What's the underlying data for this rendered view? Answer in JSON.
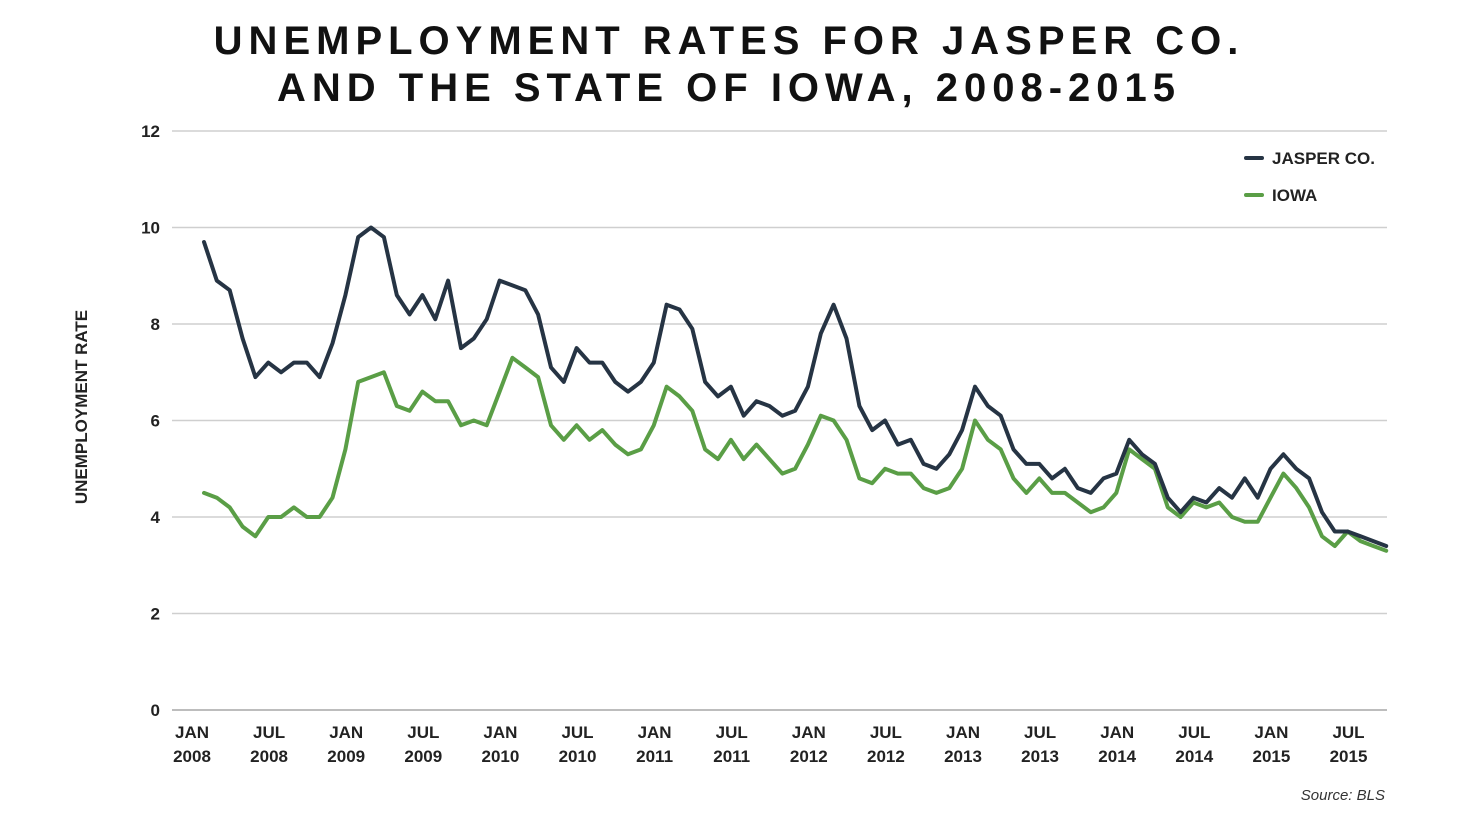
{
  "title_line1": "UNEMPLOYMENT RATES FOR JASPER CO.",
  "title_line2": "AND THE STATE OF IOWA, 2008-2015",
  "source": "Source: BLS",
  "colors": {
    "jasper": "#263444",
    "iowa": "#5a9e46",
    "grid": "#cfcfcf"
  },
  "chart_data": {
    "type": "line",
    "title": "UNEMPLOYMENT RATES FOR JASPER CO. AND THE STATE OF IOWA, 2008-2015",
    "xlabel": "",
    "ylabel": "UNEMPLOYMENT RATE",
    "ylim": [
      0,
      12
    ],
    "yticks": [
      0,
      2,
      4,
      6,
      8,
      10,
      12
    ],
    "grid": true,
    "legend_position": "top-right",
    "xticks": [
      [
        "JAN",
        "2008"
      ],
      [
        "JUL",
        "2008"
      ],
      [
        "JAN",
        "2009"
      ],
      [
        "JUL",
        "2009"
      ],
      [
        "JAN",
        "2010"
      ],
      [
        "JUL",
        "2010"
      ],
      [
        "JAN",
        "2011"
      ],
      [
        "JUL",
        "2011"
      ],
      [
        "JAN",
        "2012"
      ],
      [
        "JUL",
        "2012"
      ],
      [
        "JAN",
        "2013"
      ],
      [
        "JUL",
        "2013"
      ],
      [
        "JAN",
        "2014"
      ],
      [
        "JUL",
        "2014"
      ],
      [
        "JAN",
        "2015"
      ],
      [
        "JUL",
        "2015"
      ]
    ],
    "series": [
      {
        "name": "JASPER CO.",
        "start": "2008-01",
        "values": [
          9.7,
          8.9,
          8.7,
          7.7,
          6.9,
          7.2,
          7.0,
          7.2,
          7.2,
          6.9,
          7.6,
          8.6,
          9.8,
          10.0,
          9.8,
          8.6,
          8.2,
          8.6,
          8.1,
          8.9,
          7.5,
          7.7,
          8.1,
          8.9,
          8.8,
          8.7,
          8.2,
          7.1,
          6.8,
          7.5,
          7.2,
          7.2,
          6.8,
          6.6,
          6.8,
          7.2,
          8.4,
          8.3,
          7.9,
          6.8,
          6.5,
          6.7,
          6.1,
          6.4,
          6.3,
          6.1,
          6.2,
          6.7,
          7.8,
          8.4,
          7.7,
          6.3,
          5.8,
          6.0,
          5.5,
          5.6,
          5.1,
          5.0,
          5.3,
          5.8,
          6.7,
          6.3,
          6.1,
          5.4,
          5.1,
          5.1,
          4.8,
          5.0,
          4.6,
          4.5,
          4.8,
          4.9,
          5.6,
          5.3,
          5.1,
          4.4,
          4.1,
          4.4,
          4.3,
          4.6,
          4.4,
          4.8,
          4.4,
          5.0,
          5.3,
          5.0,
          4.8,
          4.1,
          3.7,
          3.7,
          3.6,
          3.5,
          3.4
        ]
      },
      {
        "name": "IOWA",
        "start": "2008-01",
        "values": [
          4.5,
          4.4,
          4.2,
          3.8,
          3.6,
          4.0,
          4.0,
          4.2,
          4.0,
          4.0,
          4.4,
          5.4,
          6.8,
          6.9,
          7.0,
          6.3,
          6.2,
          6.6,
          6.4,
          6.4,
          5.9,
          6.0,
          5.9,
          6.6,
          7.3,
          7.1,
          6.9,
          5.9,
          5.6,
          5.9,
          5.6,
          5.8,
          5.5,
          5.3,
          5.4,
          5.9,
          6.7,
          6.5,
          6.2,
          5.4,
          5.2,
          5.6,
          5.2,
          5.5,
          5.2,
          4.9,
          5.0,
          5.5,
          6.1,
          6.0,
          5.6,
          4.8,
          4.7,
          5.0,
          4.9,
          4.9,
          4.6,
          4.5,
          4.6,
          5.0,
          6.0,
          5.6,
          5.4,
          4.8,
          4.5,
          4.8,
          4.5,
          4.5,
          4.3,
          4.1,
          4.2,
          4.5,
          5.4,
          5.2,
          5.0,
          4.2,
          4.0,
          4.3,
          4.2,
          4.3,
          4.0,
          3.9,
          3.9,
          4.4,
          4.9,
          4.6,
          4.2,
          3.6,
          3.4,
          3.7,
          3.5,
          3.4,
          3.3
        ]
      }
    ]
  }
}
